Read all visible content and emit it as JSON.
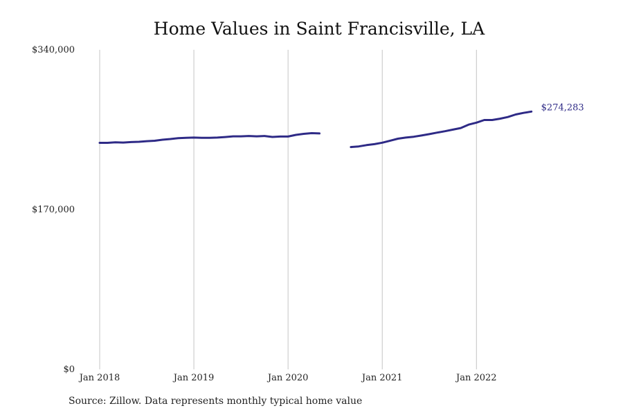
{
  "chart_data": {
    "type": "line",
    "title": "Home Values in Saint Francisville, LA",
    "source": "Source: Zillow. Data represents monthly typical home value",
    "xlabel": "",
    "ylabel": "",
    "ylim": [
      0,
      340000
    ],
    "xlim": [
      "2018-01",
      "2022-09"
    ],
    "y_ticks": [
      {
        "value": 0,
        "label": "$0"
      },
      {
        "value": 170000,
        "label": "$170,000"
      },
      {
        "value": 340000,
        "label": "$340,000"
      }
    ],
    "x_ticks": [
      {
        "value": "2018-01",
        "label": "Jan 2018"
      },
      {
        "value": "2019-01",
        "label": "Jan 2019"
      },
      {
        "value": "2020-01",
        "label": "Jan 2020"
      },
      {
        "value": "2021-01",
        "label": "Jan 2021"
      },
      {
        "value": "2022-01",
        "label": "Jan 2022"
      }
    ],
    "grid": {
      "vertical": true,
      "horizontal": false
    },
    "legend": "none",
    "color": "#2e2a86",
    "end_label": "$274,283",
    "series": [
      {
        "segments": [
          {
            "points": [
              [
                "2018-01",
                241000
              ],
              [
                "2018-02",
                241000
              ],
              [
                "2018-03",
                241500
              ],
              [
                "2018-04",
                241300
              ],
              [
                "2018-05",
                241800
              ],
              [
                "2018-06",
                242100
              ],
              [
                "2018-07",
                242800
              ],
              [
                "2018-08",
                243200
              ],
              [
                "2018-09",
                244300
              ],
              [
                "2018-10",
                245100
              ],
              [
                "2018-11",
                246000
              ],
              [
                "2018-12",
                246300
              ],
              [
                "2019-01",
                246600
              ],
              [
                "2019-02",
                246400
              ],
              [
                "2019-03",
                246400
              ],
              [
                "2019-04",
                246600
              ],
              [
                "2019-05",
                247200
              ],
              [
                "2019-06",
                247900
              ],
              [
                "2019-07",
                247900
              ],
              [
                "2019-08",
                248300
              ],
              [
                "2019-09",
                247900
              ],
              [
                "2019-10",
                248300
              ],
              [
                "2019-11",
                247300
              ],
              [
                "2019-12",
                247700
              ],
              [
                "2020-01",
                247700
              ],
              [
                "2020-02",
                249500
              ],
              [
                "2020-03",
                250600
              ],
              [
                "2020-04",
                251300
              ],
              [
                "2020-05",
                251000
              ]
            ]
          },
          {
            "points": [
              [
                "2020-09",
                236500
              ],
              [
                "2020-10",
                237200
              ],
              [
                "2020-11",
                238600
              ],
              [
                "2020-12",
                239600
              ],
              [
                "2021-01",
                241200
              ],
              [
                "2021-02",
                243300
              ],
              [
                "2021-03",
                245400
              ],
              [
                "2021-04",
                246600
              ],
              [
                "2021-05",
                247500
              ],
              [
                "2021-06",
                248800
              ],
              [
                "2021-07",
                250300
              ],
              [
                "2021-08",
                251900
              ],
              [
                "2021-09",
                253400
              ],
              [
                "2021-10",
                255100
              ],
              [
                "2021-11",
                256800
              ],
              [
                "2021-12",
                260400
              ],
              [
                "2022-01",
                262500
              ],
              [
                "2022-02",
                265300
              ],
              [
                "2022-03",
                265300
              ],
              [
                "2022-04",
                266700
              ],
              [
                "2022-05",
                268500
              ],
              [
                "2022-06",
                271200
              ],
              [
                "2022-07",
                272900
              ],
              [
                "2022-08",
                274283
              ]
            ]
          }
        ]
      }
    ]
  }
}
